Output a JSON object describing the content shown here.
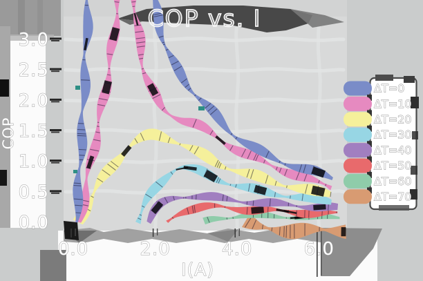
{
  "title": "COP vs. I",
  "axes": {
    "xlabel": "I(A)",
    "ylabel": "COP",
    "x_ticks": [
      "0.0",
      "2.0",
      "4.0",
      "6.0"
    ],
    "y_ticks": [
      "3.0",
      "2.5",
      "2.0",
      "1.5",
      "1.0",
      "0.5",
      "0.0"
    ]
  },
  "legend": {
    "entries": [
      {
        "label": "ΔT=0",
        "color": "#7a8cc8"
      },
      {
        "label": "ΔT=10",
        "color": "#e68ac0"
      },
      {
        "label": "ΔT=20",
        "color": "#f5f09b"
      },
      {
        "label": "ΔT=30",
        "color": "#97d6e4"
      },
      {
        "label": "ΔT=40",
        "color": "#a17fc0"
      },
      {
        "label": "ΔT=50",
        "color": "#e86a6c"
      },
      {
        "label": "ΔT=60",
        "color": "#8fccaa"
      },
      {
        "label": "ΔT=70",
        "color": "#d89b72"
      }
    ]
  },
  "chart_data": {
    "type": "line",
    "title": "COP vs. I",
    "xlabel": "I(A)",
    "ylabel": "COP",
    "xlim": [
      0,
      6.7
    ],
    "ylim": [
      0,
      3.0
    ],
    "x_ticks": [
      0,
      2,
      4,
      6
    ],
    "y_ticks": [
      0,
      0.5,
      1.0,
      1.5,
      2.0,
      2.5,
      3.0
    ],
    "grid": true,
    "legend_position": "center right",
    "style": {
      "look": "xkcd-sketch thick pastel ribbon strokes with perpendicular hatch marks",
      "text_fill": "#ffffff",
      "text_outline": "#9e9e9e",
      "plot_bg": "#d8d9d9",
      "outer_bg": "#cacccc",
      "smudge_dark": "#484848"
    },
    "series": [
      {
        "name": "ΔT=0",
        "color": "#7a8cc8",
        "width": 13,
        "points": [
          [
            0.07,
            0
          ],
          [
            0.18,
            1.1
          ],
          [
            0.28,
            2.4
          ],
          [
            0.37,
            3.7
          ],
          [
            0.6,
            5.2
          ],
          [
            1.5,
            5.2
          ],
          [
            1.85,
            4.2
          ],
          [
            2.0,
            3.55
          ],
          [
            2.18,
            3.05
          ],
          [
            2.45,
            2.6
          ],
          [
            2.8,
            2.25
          ],
          [
            3.2,
            1.95
          ],
          [
            3.6,
            1.65
          ],
          [
            4.0,
            1.4
          ],
          [
            4.5,
            1.18
          ],
          [
            5.0,
            1.02
          ],
          [
            5.5,
            0.9
          ],
          [
            6.0,
            0.8
          ],
          [
            6.33,
            0.72
          ]
        ]
      },
      {
        "name": "ΔT=10",
        "color": "#e68ac0",
        "width": 13,
        "points": [
          [
            0.14,
            0
          ],
          [
            0.45,
            1.05
          ],
          [
            0.72,
            1.95
          ],
          [
            0.95,
            2.85
          ],
          [
            1.1,
            3.7
          ],
          [
            1.25,
            4.35
          ],
          [
            1.42,
            4.1
          ],
          [
            1.55,
            3.3
          ],
          [
            1.7,
            2.6
          ],
          [
            1.95,
            2.12
          ],
          [
            2.2,
            1.86
          ],
          [
            2.6,
            1.7
          ],
          [
            3.0,
            1.6
          ],
          [
            3.4,
            1.44
          ],
          [
            3.8,
            1.27
          ],
          [
            4.2,
            1.12
          ],
          [
            4.7,
            0.97
          ],
          [
            5.2,
            0.84
          ],
          [
            5.7,
            0.71
          ],
          [
            6.1,
            0.62
          ],
          [
            6.3,
            0.57
          ]
        ]
      },
      {
        "name": "ΔT=20",
        "color": "#f5f09b",
        "width": 15,
        "points": [
          [
            0.12,
            0
          ],
          [
            0.5,
            0.48
          ],
          [
            0.9,
            0.88
          ],
          [
            1.3,
            1.2
          ],
          [
            1.7,
            1.38
          ],
          [
            2.0,
            1.43
          ],
          [
            2.35,
            1.37
          ],
          [
            2.75,
            1.25
          ],
          [
            3.15,
            1.1
          ],
          [
            3.55,
            0.96
          ],
          [
            3.95,
            0.86
          ],
          [
            4.4,
            0.76
          ],
          [
            4.9,
            0.66
          ],
          [
            5.4,
            0.58
          ],
          [
            5.9,
            0.5
          ],
          [
            6.28,
            0.46
          ]
        ]
      },
      {
        "name": "ΔT=30",
        "color": "#97d6e4",
        "width": 13,
        "points": [
          [
            1.55,
            0
          ],
          [
            1.75,
            0.28
          ],
          [
            2.0,
            0.55
          ],
          [
            2.3,
            0.78
          ],
          [
            2.6,
            0.89
          ],
          [
            3.0,
            0.85
          ],
          [
            3.4,
            0.75
          ],
          [
            3.8,
            0.64
          ],
          [
            4.2,
            0.56
          ],
          [
            4.7,
            0.5
          ],
          [
            5.2,
            0.44
          ],
          [
            5.7,
            0.39
          ],
          [
            6.3,
            0.34
          ]
        ]
      },
      {
        "name": "ΔT=40",
        "color": "#a17fc0",
        "width": 11,
        "points": [
          [
            1.83,
            0
          ],
          [
            2.0,
            0.18
          ],
          [
            2.2,
            0.32
          ],
          [
            2.5,
            0.41
          ],
          [
            2.9,
            0.43
          ],
          [
            3.3,
            0.41
          ],
          [
            3.7,
            0.38
          ],
          [
            4.1,
            0.35
          ],
          [
            4.6,
            0.32
          ],
          [
            5.1,
            0.29
          ],
          [
            5.6,
            0.27
          ],
          [
            6.1,
            0.25
          ],
          [
            6.45,
            0.23
          ]
        ]
      },
      {
        "name": "ΔT=50",
        "color": "#e86a6c",
        "width": 11,
        "points": [
          [
            2.3,
            0
          ],
          [
            2.5,
            0.12
          ],
          [
            2.75,
            0.2
          ],
          [
            3.1,
            0.24
          ],
          [
            3.5,
            0.25
          ],
          [
            3.9,
            0.23
          ],
          [
            4.3,
            0.21
          ],
          [
            4.8,
            0.19
          ],
          [
            5.3,
            0.17
          ],
          [
            5.8,
            0.16
          ],
          [
            6.3,
            0.14
          ],
          [
            6.45,
            0.14
          ]
        ]
      },
      {
        "name": "ΔT=60",
        "color": "#8fccaa",
        "width": 9,
        "points": [
          [
            3.2,
            0
          ],
          [
            3.45,
            0.06
          ],
          [
            3.8,
            0.09
          ],
          [
            4.2,
            0.11
          ],
          [
            4.7,
            0.1
          ],
          [
            5.2,
            0.095
          ],
          [
            5.7,
            0.088
          ],
          [
            6.2,
            0.08
          ],
          [
            6.5,
            0.08
          ]
        ]
      },
      {
        "name": "ΔT=70",
        "color": "#d89b72",
        "width": 21,
        "points": [
          [
            4.2,
            0.02
          ],
          [
            4.45,
            -0.07
          ],
          [
            4.8,
            -0.11
          ],
          [
            5.2,
            -0.13
          ],
          [
            5.7,
            -0.13
          ],
          [
            6.2,
            -0.14
          ],
          [
            6.65,
            -0.13
          ]
        ]
      }
    ]
  }
}
